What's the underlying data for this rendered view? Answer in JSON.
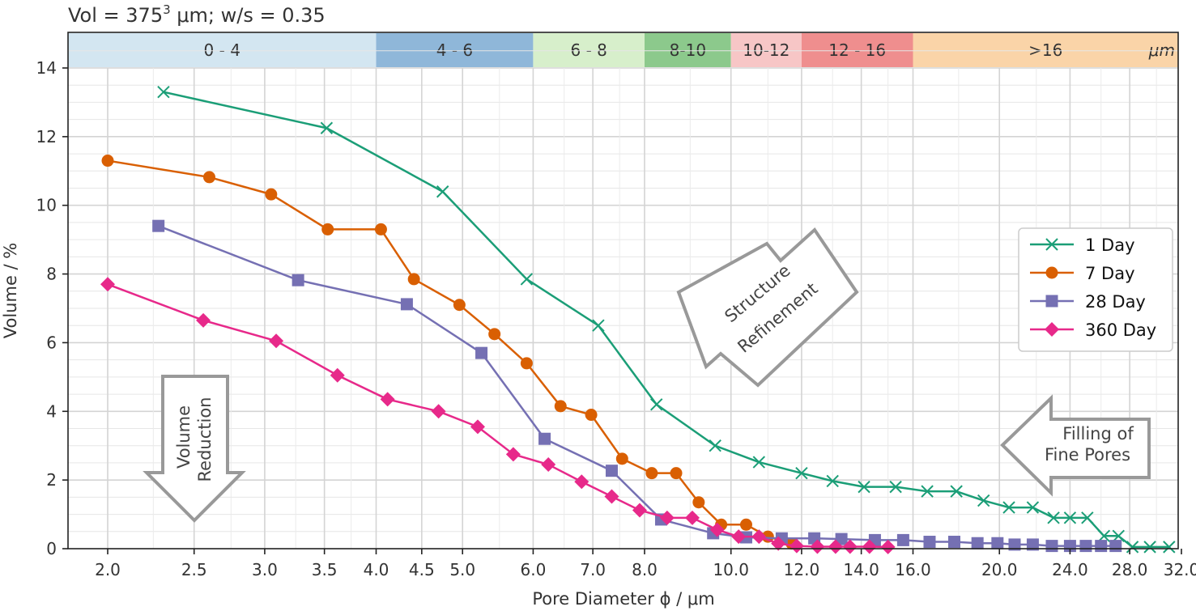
{
  "title_prefix": "Vol = 375",
  "title_sup": "3",
  "title_suffix": " μm; w/s = 0.35",
  "bands": [
    {
      "label": "0 - 4",
      "from": 2.0,
      "to": 4.0,
      "color": "#d3e6f1"
    },
    {
      "label": "4 - 6",
      "from": 4.0,
      "to": 6.0,
      "color": "#8fb7d9"
    },
    {
      "label": "6 - 8",
      "from": 6.0,
      "to": 8.0,
      "color": "#d7efcb"
    },
    {
      "label": "8-10",
      "from": 8.0,
      "to": 10.0,
      "color": "#8cc98c"
    },
    {
      "label": "10-12",
      "from": 10.0,
      "to": 12.0,
      "color": "#f7c6c6"
    },
    {
      "label": "12 - 16",
      "from": 12.0,
      "to": 16.0,
      "color": "#ef8e8e"
    },
    {
      "label": ">16",
      "from": 16.0,
      "to": 32.0,
      "color": "#fad4a8"
    }
  ],
  "band_unit": "μm",
  "annotations": {
    "structure_line1": "Structure",
    "structure_line2": "Refinement",
    "volume_line1": "Volume",
    "volume_line2": "Reduction",
    "filling_line1": "Filling of",
    "filling_line2": "Fine Pores"
  },
  "chart_data": {
    "type": "line",
    "xscale": "log2",
    "xlabel": "Pore Diameter ϕ / μm",
    "ylabel": "Volume / %",
    "xlim": [
      1.84,
      32.0
    ],
    "ylim": [
      0,
      15
    ],
    "x_ticks": [
      2.0,
      2.5,
      3.0,
      3.5,
      4.0,
      4.5,
      5.0,
      6.0,
      7.0,
      8.0,
      10.0,
      12.0,
      14.0,
      16.0,
      20.0,
      24.0,
      28.0,
      32.0
    ],
    "x_tick_labels": [
      "2.0",
      "2.5",
      "3.0",
      "3.5",
      "4.0",
      "4.5",
      "5.0",
      "6.0",
      "7.0",
      "8.0",
      "10.0",
      "12.0",
      "14.0",
      "16.0",
      "20.0",
      "24.0",
      "28.0",
      "32.0"
    ],
    "y_ticks": [
      0,
      2,
      4,
      6,
      8,
      10,
      12,
      14
    ],
    "y_tick_labels": [
      "0",
      "2",
      "4",
      "6",
      "8",
      "10",
      "12",
      "14"
    ],
    "grid": true,
    "legend_position": "right",
    "series": [
      {
        "name": "1 Day",
        "color": "#1b9e77",
        "marker": "x",
        "points": [
          [
            2.31,
            13.3
          ],
          [
            3.52,
            12.25
          ],
          [
            4.75,
            10.4
          ],
          [
            5.9,
            7.85
          ],
          [
            7.1,
            6.5
          ],
          [
            8.25,
            4.2
          ],
          [
            9.6,
            3.0
          ],
          [
            10.75,
            2.52
          ],
          [
            12.0,
            2.2
          ],
          [
            13.0,
            1.97
          ],
          [
            14.1,
            1.8
          ],
          [
            15.3,
            1.8
          ],
          [
            16.6,
            1.67
          ],
          [
            17.9,
            1.67
          ],
          [
            19.2,
            1.4
          ],
          [
            20.5,
            1.2
          ],
          [
            21.8,
            1.2
          ],
          [
            23.0,
            0.9
          ],
          [
            24.0,
            0.9
          ],
          [
            25.1,
            0.9
          ],
          [
            26.2,
            0.37
          ],
          [
            27.2,
            0.37
          ],
          [
            28.2,
            0.05
          ],
          [
            29.5,
            0.05
          ],
          [
            31.0,
            0.05
          ]
        ]
      },
      {
        "name": "7 Day",
        "color": "#d95f02",
        "marker": "o",
        "points": [
          [
            2.0,
            11.3
          ],
          [
            2.6,
            10.82
          ],
          [
            3.05,
            10.32
          ],
          [
            3.53,
            9.3
          ],
          [
            4.05,
            9.3
          ],
          [
            4.41,
            7.85
          ],
          [
            4.96,
            7.1
          ],
          [
            5.43,
            6.25
          ],
          [
            5.9,
            5.4
          ],
          [
            6.44,
            4.15
          ],
          [
            6.97,
            3.9
          ],
          [
            7.55,
            2.62
          ],
          [
            8.15,
            2.2
          ],
          [
            8.68,
            2.2
          ],
          [
            9.2,
            1.35
          ],
          [
            9.75,
            0.7
          ],
          [
            10.4,
            0.7
          ],
          [
            11.0,
            0.35
          ],
          [
            11.7,
            0.15
          ]
        ]
      },
      {
        "name": "28 Day",
        "color": "#7570b3",
        "marker": "s",
        "points": [
          [
            2.28,
            9.4
          ],
          [
            3.27,
            7.82
          ],
          [
            4.33,
            7.12
          ],
          [
            5.25,
            5.7
          ],
          [
            6.18,
            3.2
          ],
          [
            7.35,
            2.27
          ],
          [
            8.35,
            0.85
          ],
          [
            9.55,
            0.45
          ],
          [
            10.4,
            0.33
          ],
          [
            11.4,
            0.3
          ],
          [
            12.4,
            0.3
          ],
          [
            13.3,
            0.28
          ],
          [
            14.5,
            0.25
          ],
          [
            15.6,
            0.25
          ],
          [
            16.7,
            0.2
          ],
          [
            17.8,
            0.2
          ],
          [
            18.9,
            0.16
          ],
          [
            19.9,
            0.16
          ],
          [
            20.8,
            0.12
          ],
          [
            21.8,
            0.12
          ],
          [
            22.9,
            0.08
          ],
          [
            24.0,
            0.08
          ],
          [
            25.0,
            0.08
          ],
          [
            26.0,
            0.08
          ],
          [
            27.0,
            0.08
          ]
        ]
      },
      {
        "name": "360 Day",
        "color": "#e7298a",
        "marker": "D",
        "points": [
          [
            2.0,
            7.7
          ],
          [
            2.56,
            6.65
          ],
          [
            3.09,
            6.05
          ],
          [
            3.62,
            5.05
          ],
          [
            4.12,
            4.35
          ],
          [
            4.7,
            4.0
          ],
          [
            5.2,
            3.55
          ],
          [
            5.7,
            2.75
          ],
          [
            6.24,
            2.45
          ],
          [
            6.8,
            1.95
          ],
          [
            7.35,
            1.52
          ],
          [
            7.9,
            1.12
          ],
          [
            8.48,
            0.9
          ],
          [
            9.05,
            0.9
          ],
          [
            9.65,
            0.55
          ],
          [
            10.2,
            0.35
          ],
          [
            10.75,
            0.35
          ],
          [
            11.3,
            0.15
          ],
          [
            11.85,
            0.08
          ],
          [
            12.5,
            0.06
          ],
          [
            13.1,
            0.06
          ],
          [
            13.6,
            0.06
          ],
          [
            14.3,
            0.06
          ],
          [
            15.0,
            0.05
          ]
        ]
      }
    ]
  }
}
